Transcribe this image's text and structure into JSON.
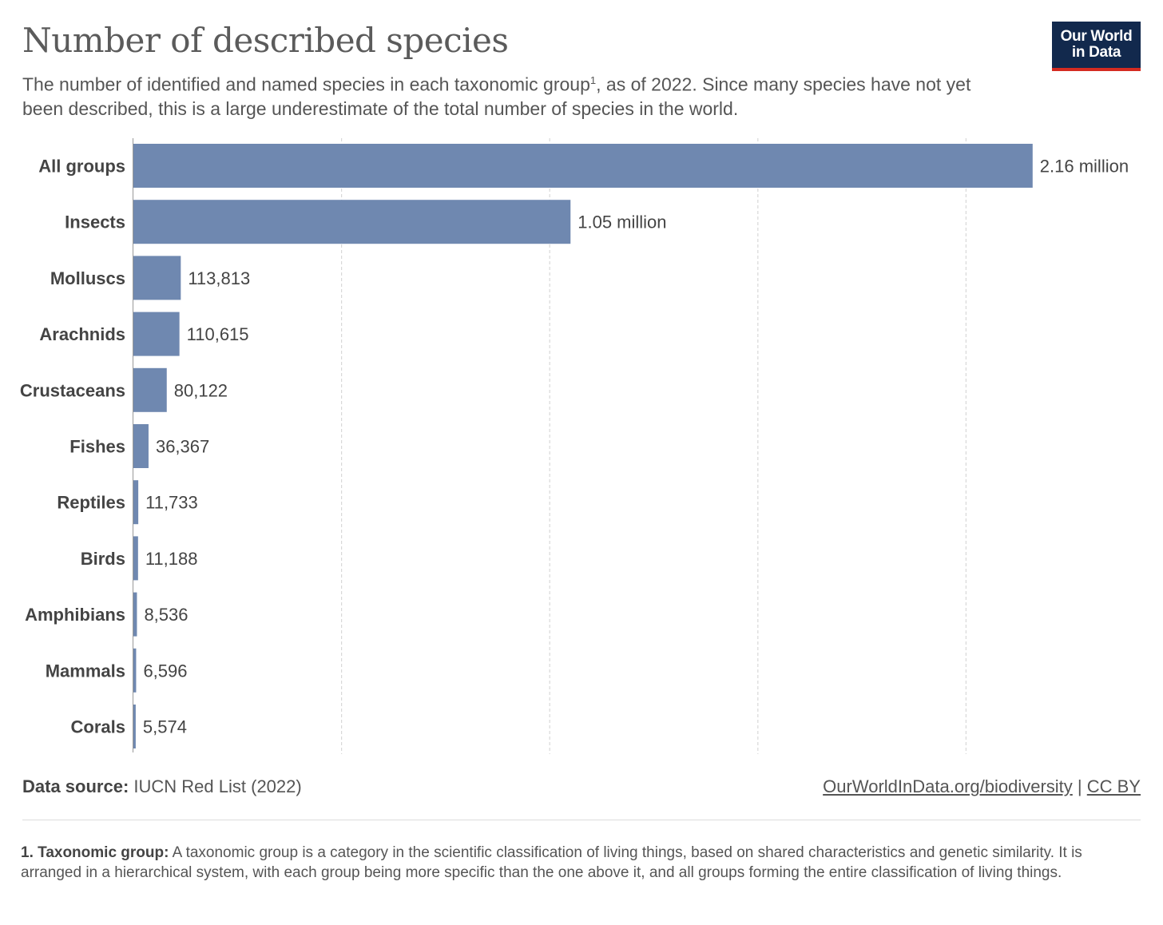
{
  "header": {
    "title": "Number of described species",
    "subtitle_before": "The number of identified and named species in each taxonomic group",
    "subtitle_sup": "1",
    "subtitle_after": ", as of 2022. Since many species have not yet been described, this is a large underestimate of the total number of species in the world.",
    "logo_line1": "Our World",
    "logo_line2": "in Data"
  },
  "colors": {
    "bar": "#6f88b0",
    "grid": "#d8d8d8",
    "logo_bg": "#12294d",
    "logo_accent": "#d42b21"
  },
  "chart_data": {
    "type": "bar",
    "orientation": "horizontal",
    "categories": [
      "All groups",
      "Insects",
      "Molluscs",
      "Arachnids",
      "Crustaceans",
      "Fishes",
      "Reptiles",
      "Birds",
      "Amphibians",
      "Mammals",
      "Corals"
    ],
    "values": [
      2160000,
      1050000,
      113813,
      110615,
      80122,
      36367,
      11733,
      11188,
      8536,
      6596,
      5574
    ],
    "value_labels": [
      "2.16 million",
      "1.05 million",
      "113,813",
      "110,615",
      "80,122",
      "36,367",
      "11,733",
      "11,188",
      "8,536",
      "6,596",
      "5,574"
    ],
    "xlim": [
      0,
      2500000
    ],
    "gridlines": [
      500000,
      1000000,
      1500000,
      2000000
    ],
    "grid": true
  },
  "footer": {
    "source_label": "Data source:",
    "source_text": "IUCN Red List (2022)",
    "link_text": "OurWorldInData.org/biodiversity",
    "separator": "|",
    "license": "CC BY"
  },
  "note": {
    "label": "1. Taxonomic group:",
    "text": "A taxonomic group is a category in the scientific classification of living things, based on shared characteristics and genetic similarity. It is arranged in a hierarchical system, with each group being more specific than the one above it, and all groups forming the entire classification of living things."
  }
}
